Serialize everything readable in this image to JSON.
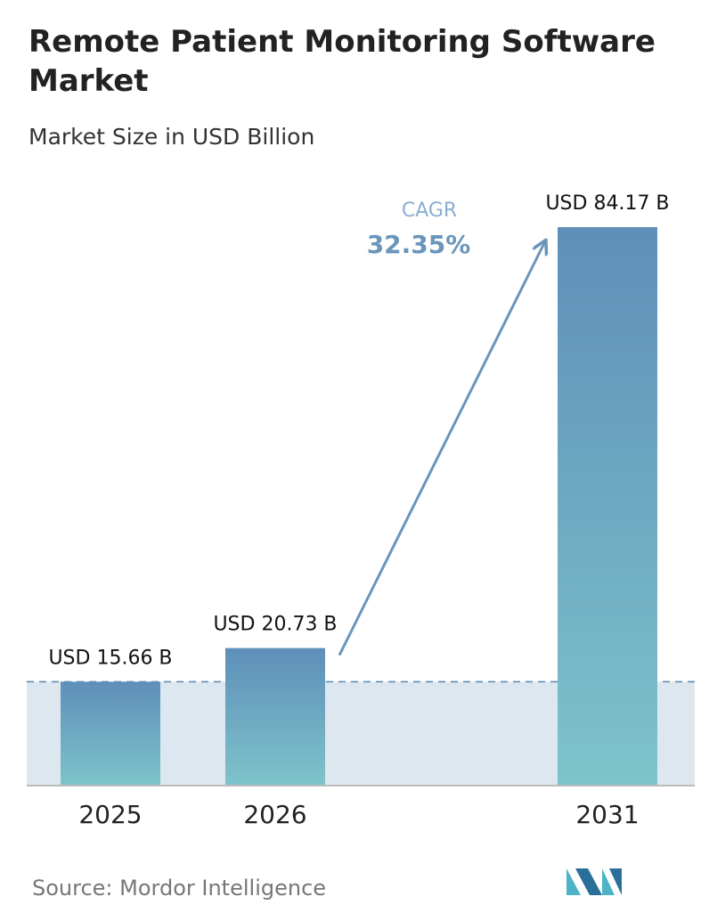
{
  "chart_data": {
    "type": "bar",
    "title": "Remote Patient Monitoring Software Market",
    "subtitle": "Market Size in USD Billion",
    "categories": [
      "2025",
      "2026",
      "2031"
    ],
    "values": [
      15.66,
      20.73,
      84.17
    ],
    "value_labels": [
      "USD 15.66 B",
      "USD 20.73 B",
      "USD 84.17 B"
    ],
    "color": "#6a9fc0",
    "annotations": [
      "CAGR",
      "32.35%"
    ],
    "source": "Source: Mordor Intelligence"
  }
}
